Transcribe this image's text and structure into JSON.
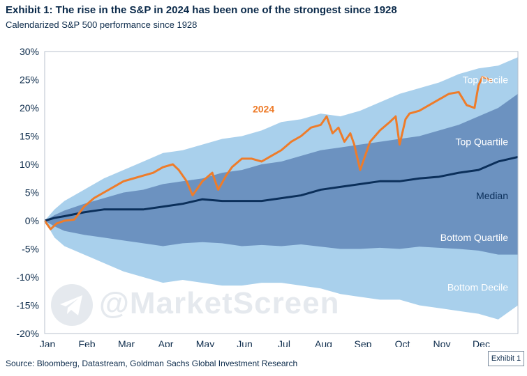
{
  "header": {
    "title": "Exhibit 1: The rise in the S&P in 2024 has been one of the strongest since 1928",
    "subtitle": "Calendarized S&P 500 performance since 1928"
  },
  "footer": {
    "source": "Source: Bloomberg, Datastream, Goldman Sachs Global Investment Research",
    "exhibit_tag": "Exhibit 1"
  },
  "watermark": {
    "text": "@MarketScreen",
    "icon": "telegram-icon"
  },
  "colors": {
    "decile_band": "#a9d0ec",
    "quartile_band": "#6c92c0",
    "median": "#0b2f5a",
    "y2024": "#ee7c2a",
    "axis_text": "#0b2a4a",
    "frame": "#b8c1cc"
  },
  "chart_data": {
    "type": "area",
    "x_unit": "month of year (0 = start of January, 12 = end of December)",
    "xlim": [
      0,
      12
    ],
    "ylim": [
      -20,
      30
    ],
    "y_ticks": [
      "-20%",
      "-15%",
      "-10%",
      "-5%",
      "0%",
      "5%",
      "10%",
      "15%",
      "20%",
      "25%",
      "30%"
    ],
    "x_ticks": [
      "Jan",
      "Feb",
      "Mar",
      "Apr",
      "May",
      "Jun",
      "Jul",
      "Aug",
      "Sep",
      "Oct",
      "Nov",
      "Dec"
    ],
    "grid": false,
    "annotations": {
      "top_decile": "Top Decile",
      "top_quartile": "Top Quartile",
      "median": "Median",
      "bottom_quartile": "Bottom Quartile",
      "bottom_decile": "Bottom Decile",
      "year_label": "2024"
    },
    "x": [
      0,
      0.25,
      0.5,
      1,
      1.5,
      2,
      2.5,
      3,
      3.5,
      4,
      4.5,
      5,
      5.5,
      6,
      6.5,
      7,
      7.5,
      8,
      8.5,
      9,
      9.5,
      10,
      10.5,
      11,
      11.5,
      12
    ],
    "series": [
      {
        "name": "Top Decile",
        "values": [
          0,
          2,
          3.5,
          5.5,
          7.5,
          9,
          10.5,
          12,
          12.5,
          13.5,
          14.5,
          15,
          16,
          17.5,
          18,
          19,
          18.5,
          19.5,
          21,
          22.5,
          23.5,
          24.5,
          26,
          27,
          27.5,
          29
        ]
      },
      {
        "name": "Top Quartile",
        "values": [
          0,
          1,
          1.8,
          3,
          4,
          5,
          5.5,
          6.5,
          7,
          7.5,
          8.5,
          9,
          10,
          10.5,
          11.5,
          12.5,
          13,
          13.5,
          14,
          14.5,
          15,
          16,
          17,
          18.5,
          20,
          22.5
        ]
      },
      {
        "name": "Bottom Quartile",
        "values": [
          0,
          -1,
          -1.8,
          -2.5,
          -3,
          -3.5,
          -4,
          -4.5,
          -4,
          -3.8,
          -4,
          -4.5,
          -4.3,
          -4.5,
          -4.2,
          -4.6,
          -5,
          -5,
          -4.8,
          -5,
          -4.6,
          -4.8,
          -5,
          -5.3,
          -6,
          -6
        ]
      },
      {
        "name": "Bottom Decile",
        "values": [
          0,
          -3,
          -4.5,
          -6,
          -7.5,
          -9,
          -10,
          -11,
          -10.5,
          -11,
          -11.5,
          -11.5,
          -11,
          -11,
          -11.5,
          -12,
          -13,
          -13.5,
          -14,
          -14,
          -15,
          -15.5,
          -16,
          -16.5,
          -17.5,
          -15
        ]
      },
      {
        "name": "Median",
        "values": [
          0,
          0.5,
          0.8,
          1.5,
          2,
          2,
          2,
          2.5,
          3,
          3.8,
          3.5,
          3.5,
          3.5,
          4,
          4.5,
          5.5,
          6,
          6.5,
          7,
          7,
          7.5,
          7.8,
          8.5,
          9,
          10.5,
          11.3
        ]
      },
      {
        "name": "2024",
        "x": [
          0,
          0.15,
          0.3,
          0.5,
          0.75,
          1,
          1.25,
          1.5,
          1.75,
          2,
          2.25,
          2.5,
          2.75,
          3,
          3.25,
          3.4,
          3.6,
          3.75,
          4,
          4.25,
          4.4,
          4.6,
          4.75,
          5,
          5.25,
          5.5,
          5.75,
          6,
          6.25,
          6.5,
          6.75,
          7,
          7.15,
          7.3,
          7.45,
          7.6,
          7.75,
          7.85,
          8,
          8.25,
          8.5,
          8.75,
          8.9,
          9,
          9.15,
          9.25,
          9.5,
          9.75,
          10,
          10.25,
          10.5,
          10.7,
          10.9,
          11,
          11.1,
          11.2,
          11.25,
          11.35
        ],
        "values": [
          0,
          -1.5,
          -0.5,
          0,
          0.2,
          2.5,
          4,
          5,
          6,
          7,
          7.5,
          8,
          8.5,
          9.5,
          10,
          9,
          7,
          4.5,
          7,
          8.5,
          5.5,
          8,
          9.5,
          11,
          11,
          10.5,
          11.5,
          12.5,
          14,
          15,
          16.5,
          17,
          18.5,
          15.5,
          16.5,
          14,
          15.5,
          13.5,
          9,
          14,
          16,
          17.5,
          18.5,
          13.5,
          18,
          19,
          19.5,
          20.5,
          21.5,
          22.5,
          22.8,
          20.5,
          20,
          24,
          25.5,
          25.3,
          25,
          24.8
        ]
      }
    ]
  }
}
